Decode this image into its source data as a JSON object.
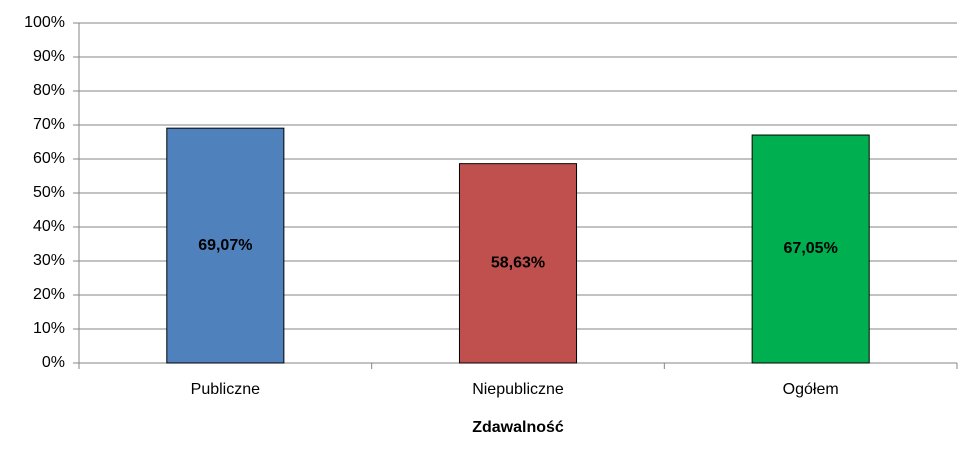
{
  "chart_data": {
    "type": "bar",
    "x_label": "Zdawalność",
    "categories": [
      "Publiczne",
      "Niepubliczne",
      "Ogółem"
    ],
    "values": [
      69.07,
      58.63,
      67.05
    ],
    "value_labels": [
      "69,07%",
      "58,63%",
      "67,05%"
    ],
    "colors": [
      "#4f81bd",
      "#c0504d",
      "#00b050"
    ],
    "ylim": [
      0,
      100
    ],
    "yticks": [
      {
        "value": 0,
        "label": "0%"
      },
      {
        "value": 10,
        "label": "10%"
      },
      {
        "value": 20,
        "label": "20%"
      },
      {
        "value": 30,
        "label": "30%"
      },
      {
        "value": 40,
        "label": "40%"
      },
      {
        "value": 50,
        "label": "50%"
      },
      {
        "value": 60,
        "label": "60%"
      },
      {
        "value": 70,
        "label": "70%"
      },
      {
        "value": 80,
        "label": "80%"
      },
      {
        "value": 90,
        "label": "90%"
      },
      {
        "value": 100,
        "label": "100%"
      }
    ],
    "grid": true
  }
}
